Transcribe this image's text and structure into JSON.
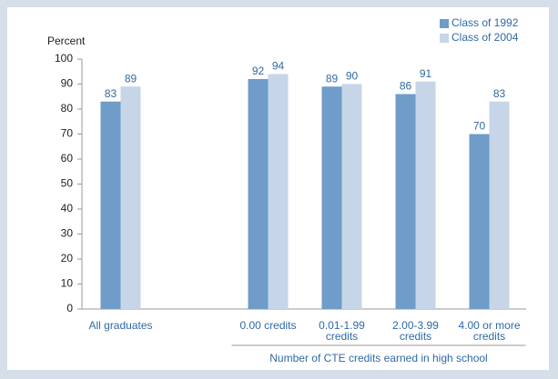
{
  "chart_data": {
    "type": "bar",
    "y_label": "Percent",
    "x_group_label": "Number of CTE credits earned in high school",
    "categories": [
      "All graduates",
      null,
      "0.00 credits",
      "0.01-1.99 credits",
      "2.00-3.99 credits",
      "4.00 or more credits"
    ],
    "series": [
      {
        "name": "Class of 1992",
        "color": "#6f9cc8",
        "values": [
          83,
          null,
          92,
          89,
          86,
          70
        ]
      },
      {
        "name": "Class of 2004",
        "color": "#c6d6e8",
        "values": [
          89,
          null,
          94,
          90,
          91,
          83
        ]
      }
    ],
    "ylim": [
      0,
      100
    ],
    "yticks": [
      0,
      10,
      20,
      30,
      40,
      50,
      60,
      70,
      80,
      90,
      100
    ],
    "grid": false,
    "legend": "top-right"
  }
}
